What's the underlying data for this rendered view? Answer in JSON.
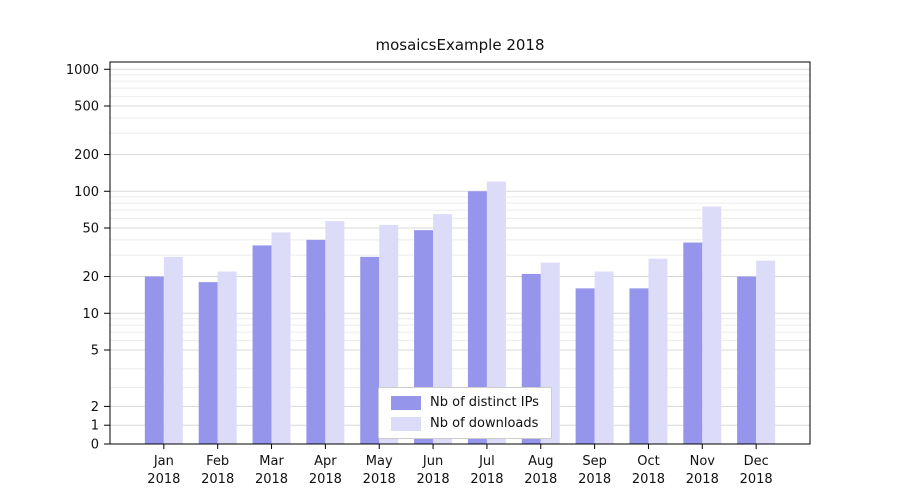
{
  "chart_data": {
    "type": "bar",
    "title": "mosaicsExample 2018",
    "categories": [
      "Jan",
      "Feb",
      "Mar",
      "Apr",
      "May",
      "Jun",
      "Jul",
      "Aug",
      "Sep",
      "Oct",
      "Nov",
      "Dec"
    ],
    "category_year": "2018",
    "series": [
      {
        "name": "Nb of distinct IPs",
        "color": "#9595ec",
        "values": [
          20,
          18,
          36,
          40,
          29,
          48,
          100,
          21,
          16,
          16,
          38,
          20
        ]
      },
      {
        "name": "Nb of downloads",
        "color": "#dcdcf8",
        "values": [
          29,
          22,
          46,
          57,
          53,
          65,
          120,
          26,
          22,
          28,
          75,
          27
        ]
      }
    ],
    "yticks": [
      0,
      1,
      2,
      5,
      10,
      20,
      50,
      100,
      200,
      500,
      1000
    ],
    "ylim": [
      0,
      1000
    ],
    "yscale": "log-with-linear-zero-region",
    "grid": "horizontal",
    "legend_position": "lower center"
  }
}
